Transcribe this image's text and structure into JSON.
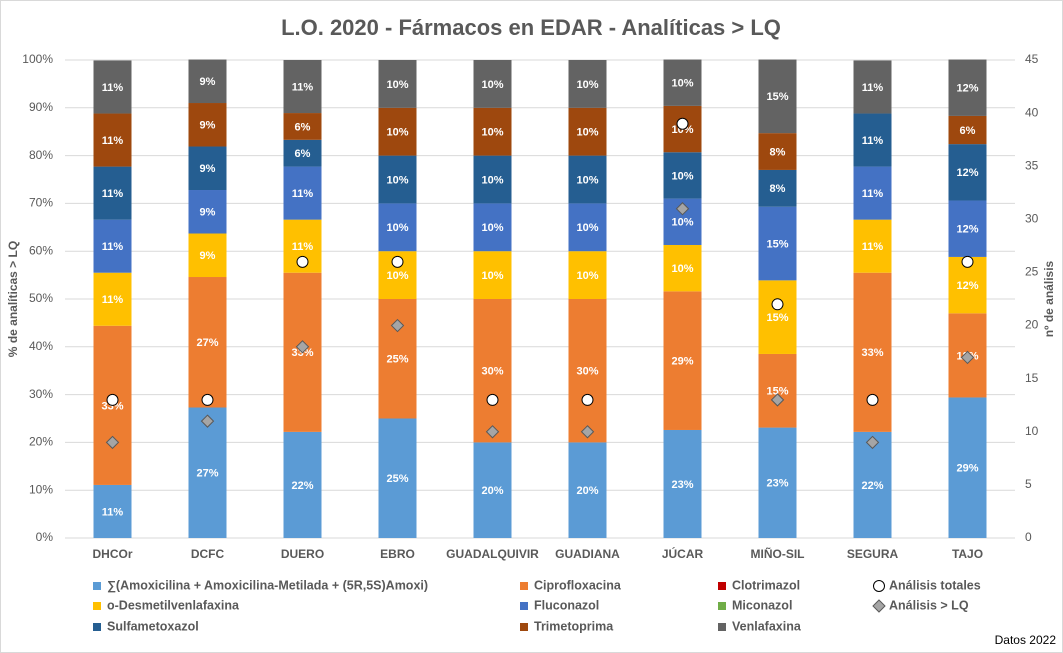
{
  "chart_data": {
    "type": "bar",
    "stacked": true,
    "title": "L.O. 2020 - Fármacos en EDAR - Analíticas > LQ",
    "ylabel": "% de analíticas > LQ",
    "y2label": "nº de análisis",
    "footer": "Datos 2022",
    "categories": [
      "DHCOr",
      "DCFC",
      "DUERO",
      "EBRO",
      "GUADALQUIVIR",
      "GUADIANA",
      "JÚCAR",
      "MIÑO-SIL",
      "SEGURA",
      "TAJO"
    ],
    "ylim": [
      0,
      100
    ],
    "yticks": [
      {
        "value": 0,
        "label": "0%"
      },
      {
        "value": 10,
        "label": "10%"
      },
      {
        "value": 20,
        "label": "20%"
      },
      {
        "value": 30,
        "label": "30%"
      },
      {
        "value": 40,
        "label": "40%"
      },
      {
        "value": 50,
        "label": "50%"
      },
      {
        "value": 60,
        "label": "60%"
      },
      {
        "value": 70,
        "label": "70%"
      },
      {
        "value": 80,
        "label": "80%"
      },
      {
        "value": 90,
        "label": "90%"
      },
      {
        "value": 100,
        "label": "100%"
      }
    ],
    "y2lim": [
      0,
      45
    ],
    "y2ticks": [
      0,
      5,
      10,
      15,
      20,
      25,
      30,
      35,
      40,
      45
    ],
    "grid": true,
    "legend": "bottom",
    "series": [
      {
        "name": "∑(Amoxicilina + Amoxicilina-Metilada + (5R,5S)Amoxi)",
        "color": "#5b9bd5",
        "values": [
          11.1,
          27.3,
          22.2,
          25,
          20,
          20,
          22.6,
          23.1,
          22.2,
          29.4
        ],
        "value_labels": [
          "11%",
          "27%",
          "22%",
          "25%",
          "20%",
          "20%",
          "23%",
          "23%",
          "22%",
          "29%"
        ]
      },
      {
        "name": "Ciprofloxacina",
        "color": "#ed7d31",
        "values": [
          33.3,
          27.3,
          33.3,
          25,
          30,
          30,
          29.0,
          15.4,
          33.3,
          17.6
        ],
        "value_labels": [
          "33%",
          "27%",
          "33%",
          "25%",
          "30%",
          "30%",
          "29%",
          "15%",
          "33%",
          "18%"
        ]
      },
      {
        "name": "Clotrimazol",
        "color": "#c00000",
        "values": [
          0,
          0,
          0,
          0,
          0,
          0,
          0,
          0,
          0,
          0
        ]
      },
      {
        "name": "o-Desmetilvenlafaxina",
        "color": "#ffc000",
        "values": [
          11.1,
          9.1,
          11.1,
          10,
          10,
          10,
          9.7,
          15.4,
          11.1,
          11.8
        ],
        "value_labels": [
          "11%",
          "9%",
          "11%",
          "10%",
          "10%",
          "10%",
          "10%",
          "15%",
          "11%",
          "12%"
        ]
      },
      {
        "name": "Fluconazol",
        "color": "#4472c4",
        "values": [
          11.1,
          9.1,
          11.1,
          10,
          10,
          10,
          9.7,
          15.4,
          11.1,
          11.8
        ],
        "value_labels": [
          "11%",
          "9%",
          "11%",
          "10%",
          "10%",
          "10%",
          "10%",
          "15%",
          "11%",
          "12%"
        ]
      },
      {
        "name": "Miconazol",
        "color": "#70ad47",
        "values": [
          0,
          0,
          0,
          0,
          0,
          0,
          0,
          0,
          0,
          0
        ]
      },
      {
        "name": "Sulfametoxazol",
        "color": "#255e91",
        "values": [
          11.1,
          9.1,
          5.6,
          10,
          10,
          10,
          9.7,
          7.7,
          11.1,
          11.8
        ],
        "value_labels": [
          "11%",
          "9%",
          "6%",
          "10%",
          "10%",
          "10%",
          "10%",
          "8%",
          "11%",
          "12%"
        ]
      },
      {
        "name": "Trimetoprima",
        "color": "#9e480e",
        "values": [
          11.1,
          9.1,
          5.6,
          10,
          10,
          10,
          9.7,
          7.7,
          0,
          5.9
        ],
        "value_labels": [
          "11%",
          "9%",
          "6%",
          "10%",
          "10%",
          "10%",
          "10%",
          "8%",
          null,
          "6%"
        ]
      },
      {
        "name": "Venlafaxina",
        "color": "#636363",
        "values": [
          11.1,
          9.1,
          11.1,
          10,
          10,
          10,
          9.7,
          15.4,
          11.1,
          11.8
        ],
        "value_labels": [
          "11%",
          "9%",
          "11%",
          "10%",
          "10%",
          "10%",
          "10%",
          "15%",
          "11%",
          "12%"
        ]
      },
      {
        "name": "Análisis totales",
        "type": "scatter",
        "axis": "y2",
        "marker": "circle",
        "color": "#ffffff",
        "values": [
          13,
          13,
          26,
          26,
          13,
          13,
          39,
          22,
          13,
          26
        ]
      },
      {
        "name": "Análisis > LQ",
        "type": "scatter",
        "axis": "y2",
        "marker": "diamond",
        "color": "#a5a5a5",
        "values": [
          9,
          11,
          18,
          20,
          10,
          10,
          31,
          13,
          9,
          17
        ]
      }
    ]
  }
}
